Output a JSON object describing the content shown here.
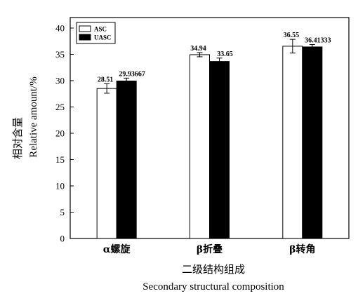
{
  "chart_data": {
    "type": "bar",
    "categories": [
      "α螺旋",
      "β折叠",
      "β转角"
    ],
    "series": [
      {
        "name": "ASC",
        "values": [
          28.51,
          34.94,
          36.55
        ],
        "errors": [
          0.9,
          0.4,
          1.3
        ],
        "labels": [
          "28.51",
          "34.94",
          "36.55"
        ]
      },
      {
        "name": "UASC",
        "values": [
          29.93667,
          33.65,
          36.41333
        ],
        "errors": [
          0.55,
          0.65,
          0.45
        ],
        "labels": [
          "29.93667",
          "33.65",
          "36.41333"
        ]
      }
    ],
    "xlabel_cn": "二级结构组成",
    "xlabel_en": "Secondary structural composition",
    "ylabel_cn": "相对含量",
    "ylabel_en": "Relative amount/%",
    "ylim": [
      0,
      42
    ],
    "yticks": [
      0,
      5,
      10,
      15,
      20,
      25,
      30,
      35,
      40
    ],
    "legend_position": "top-left",
    "colors": {
      "ASC": "#ffffff",
      "UASC": "#000000"
    }
  }
}
